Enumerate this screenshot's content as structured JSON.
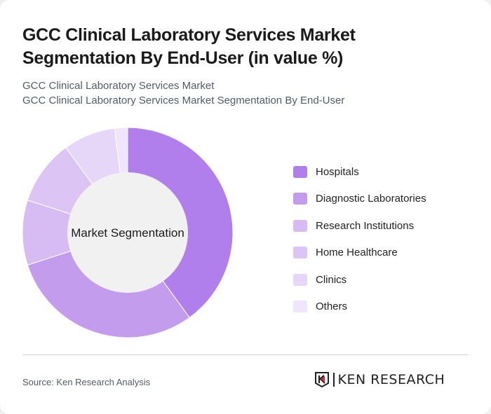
{
  "title": "GCC Clinical Laboratory Services Market Segmentation By End-User (in value %)",
  "subtitle1": "GCC Clinical Laboratory Services Market",
  "subtitle2": "GCC Clinical Laboratory Services Market Segmentation By End-User",
  "source": "Source: Ken Research Analysis",
  "logo_text": "KEN RESEARCH",
  "chart_data": {
    "type": "pie",
    "donut": true,
    "center_label": "Market Segmentation",
    "categories": [
      "Hospitals",
      "Diagnostic Laboratories",
      "Research Institutions",
      "Home Healthcare",
      "Clinics",
      "Others"
    ],
    "values": [
      40,
      30,
      10,
      10,
      8,
      2
    ],
    "colors": [
      "#b07fec",
      "#c39ced",
      "#d6bcf3",
      "#dcc5f5",
      "#e6d6f8",
      "#efe6fb"
    ],
    "legend_position": "right"
  }
}
